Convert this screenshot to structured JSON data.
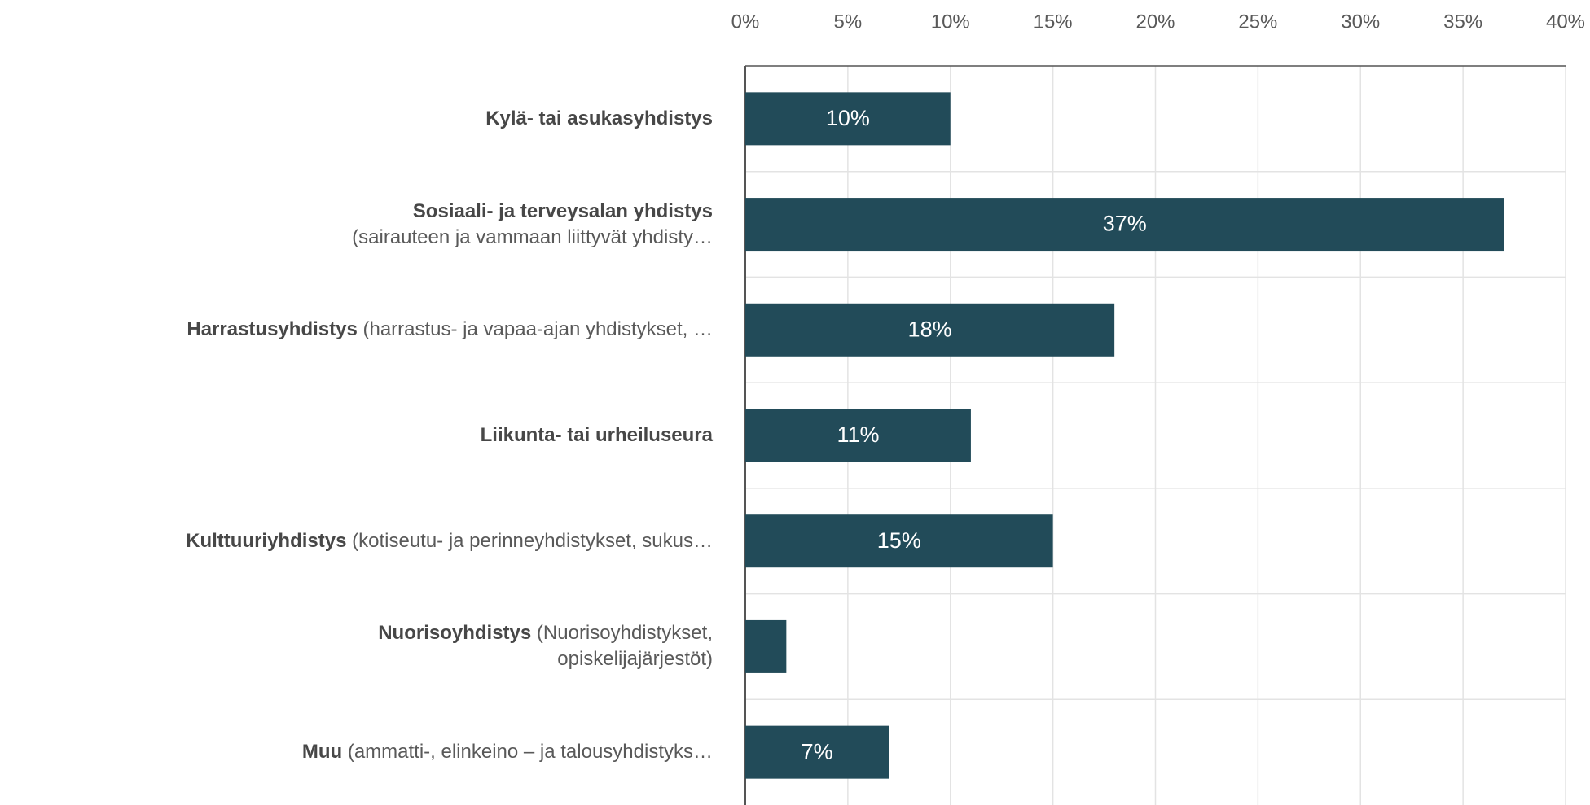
{
  "chart_data": {
    "type": "barh",
    "categories": [
      {
        "lines": [
          [
            {
              "text": "Kylä- tai asukasyhdistys",
              "bold": true
            }
          ]
        ]
      },
      {
        "lines": [
          [
            {
              "text": "Sosiaali- ja terveysalan yhdistys",
              "bold": true
            }
          ],
          [
            {
              "text": "(sairauteen ja vammaan liittyvät yhdisty…"
            }
          ]
        ]
      },
      {
        "lines": [
          [
            {
              "text": "Harrastusyhdistys",
              "bold": true
            },
            {
              "text": "(harrastus- ja vapaa-ajan yhdistykset, …"
            }
          ]
        ]
      },
      {
        "lines": [
          [
            {
              "text": "Liikunta- tai urheiluseura",
              "bold": true
            }
          ]
        ]
      },
      {
        "lines": [
          [
            {
              "text": "Kulttuuriyhdistys",
              "bold": true
            },
            {
              "text": "(kotiseutu- ja perinneyhdistykset, sukus…"
            }
          ]
        ]
      },
      {
        "lines": [
          [
            {
              "text": "Nuorisoyhdistys",
              "bold": true
            },
            {
              "text": "(Nuorisoyhdistykset,"
            }
          ],
          [
            {
              "text": "opiskelijajärjestöt)"
            }
          ]
        ]
      },
      {
        "lines": [
          [
            {
              "text": "Muu",
              "bold": true
            },
            {
              "text": "(ammatti-, elinkeino – ja talousyhdistyks…"
            }
          ]
        ]
      }
    ],
    "values": [
      10,
      37,
      18,
      11,
      15,
      2,
      7
    ],
    "value_labels": [
      "10%",
      "37%",
      "18%",
      "11%",
      "15%",
      null,
      "7%"
    ],
    "color": "#224b59",
    "xlim": [
      0,
      40
    ],
    "xticks": [
      {
        "value": 0,
        "label": "0%"
      },
      {
        "value": 5,
        "label": "5%"
      },
      {
        "value": 10,
        "label": "10%"
      },
      {
        "value": 15,
        "label": "15%"
      },
      {
        "value": 20,
        "label": "20%"
      },
      {
        "value": 25,
        "label": "25%"
      },
      {
        "value": 30,
        "label": "30%"
      },
      {
        "value": 35,
        "label": "35%"
      },
      {
        "value": 40,
        "label": "40%"
      }
    ],
    "grid": true
  }
}
